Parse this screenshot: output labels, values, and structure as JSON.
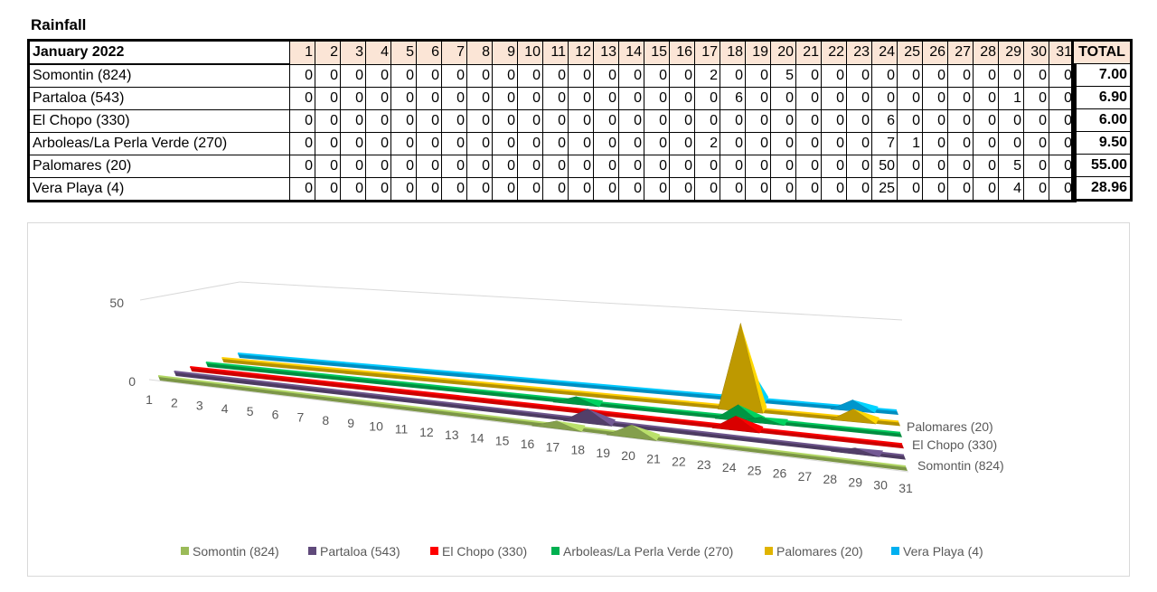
{
  "title": "Rainfall",
  "table": {
    "period_label": "January 2022",
    "days": [
      "1",
      "2",
      "3",
      "4",
      "5",
      "6",
      "7",
      "8",
      "9",
      "10",
      "11",
      "12",
      "13",
      "14",
      "15",
      "16",
      "17",
      "18",
      "19",
      "20",
      "21",
      "22",
      "23",
      "24",
      "25",
      "26",
      "27",
      "28",
      "29",
      "30",
      "31"
    ],
    "total_label": "TOTAL",
    "rows": [
      {
        "name": "Somontin (824)",
        "values": [
          0,
          0,
          0,
          0,
          0,
          0,
          0,
          0,
          0,
          0,
          0,
          0,
          0,
          0,
          0,
          0,
          2,
          0,
          0,
          5,
          0,
          0,
          0,
          0,
          0,
          0,
          0,
          0,
          0,
          0,
          0
        ],
        "total": "7.00"
      },
      {
        "name": "Partaloa (543)",
        "values": [
          0,
          0,
          0,
          0,
          0,
          0,
          0,
          0,
          0,
          0,
          0,
          0,
          0,
          0,
          0,
          0,
          0,
          6,
          0,
          0,
          0,
          0,
          0,
          0,
          0,
          0,
          0,
          0,
          1,
          0,
          0
        ],
        "total": "6.90"
      },
      {
        "name": "El Chopo (330)",
        "values": [
          0,
          0,
          0,
          0,
          0,
          0,
          0,
          0,
          0,
          0,
          0,
          0,
          0,
          0,
          0,
          0,
          0,
          0,
          0,
          0,
          0,
          0,
          0,
          6,
          0,
          0,
          0,
          0,
          0,
          0,
          0
        ],
        "total": "6.00"
      },
      {
        "name": "Arboleas/La Perla Verde (270)",
        "values": [
          0,
          0,
          0,
          0,
          0,
          0,
          0,
          0,
          0,
          0,
          0,
          0,
          0,
          0,
          0,
          0,
          2,
          0,
          0,
          0,
          0,
          0,
          0,
          7,
          1,
          0,
          0,
          0,
          0,
          0,
          0
        ],
        "total": "9.50"
      },
      {
        "name": "Palomares (20)",
        "values": [
          0,
          0,
          0,
          0,
          0,
          0,
          0,
          0,
          0,
          0,
          0,
          0,
          0,
          0,
          0,
          0,
          0,
          0,
          0,
          0,
          0,
          0,
          0,
          50,
          0,
          0,
          0,
          0,
          5,
          0,
          0
        ],
        "total": "55.00"
      },
      {
        "name": "Vera Playa (4)",
        "values": [
          0,
          0,
          0,
          0,
          0,
          0,
          0,
          0,
          0,
          0,
          0,
          0,
          0,
          0,
          0,
          0,
          0,
          0,
          0,
          0,
          0,
          0,
          0,
          25,
          0,
          0,
          0,
          0,
          4,
          0,
          0
        ],
        "total": "28.96"
      }
    ]
  },
  "chart_data": {
    "type": "area",
    "x": [
      "1",
      "2",
      "3",
      "4",
      "5",
      "6",
      "7",
      "8",
      "9",
      "10",
      "11",
      "12",
      "13",
      "14",
      "15",
      "16",
      "17",
      "18",
      "19",
      "20",
      "21",
      "22",
      "23",
      "24",
      "25",
      "26",
      "27",
      "28",
      "29",
      "30",
      "31"
    ],
    "y_ticks": [
      "0",
      "50"
    ],
    "ylim": [
      0,
      50
    ],
    "depth_labels": [
      "Palomares (20)",
      "El Chopo (330)",
      "Somontin (824)"
    ],
    "legend_position": "bottom",
    "series": [
      {
        "name": "Somontin (824)",
        "color": "#9bbb59",
        "values": [
          0,
          0,
          0,
          0,
          0,
          0,
          0,
          0,
          0,
          0,
          0,
          0,
          0,
          0,
          0,
          0,
          2,
          0,
          0,
          5,
          0,
          0,
          0,
          0,
          0,
          0,
          0,
          0,
          0,
          0,
          0
        ]
      },
      {
        "name": "Partaloa (543)",
        "color": "#604a7b",
        "values": [
          0,
          0,
          0,
          0,
          0,
          0,
          0,
          0,
          0,
          0,
          0,
          0,
          0,
          0,
          0,
          0,
          0,
          6,
          0,
          0,
          0,
          0,
          0,
          0,
          0,
          0,
          0,
          0,
          1,
          0,
          0
        ]
      },
      {
        "name": "El Chopo (330)",
        "color": "#ff0000",
        "values": [
          0,
          0,
          0,
          0,
          0,
          0,
          0,
          0,
          0,
          0,
          0,
          0,
          0,
          0,
          0,
          0,
          0,
          0,
          0,
          0,
          0,
          0,
          0,
          6,
          0,
          0,
          0,
          0,
          0,
          0,
          0
        ]
      },
      {
        "name": "Arboleas/La Perla Verde (270)",
        "color": "#00b050",
        "values": [
          0,
          0,
          0,
          0,
          0,
          0,
          0,
          0,
          0,
          0,
          0,
          0,
          0,
          0,
          0,
          0,
          2,
          0,
          0,
          0,
          0,
          0,
          0,
          7,
          1,
          0,
          0,
          0,
          0,
          0,
          0
        ]
      },
      {
        "name": "Palomares (20)",
        "color": "#e0b400",
        "values": [
          0,
          0,
          0,
          0,
          0,
          0,
          0,
          0,
          0,
          0,
          0,
          0,
          0,
          0,
          0,
          0,
          0,
          0,
          0,
          0,
          0,
          0,
          0,
          50,
          0,
          0,
          0,
          0,
          5,
          0,
          0
        ]
      },
      {
        "name": "Vera Playa (4)",
        "color": "#00b0f0",
        "values": [
          0,
          0,
          0,
          0,
          0,
          0,
          0,
          0,
          0,
          0,
          0,
          0,
          0,
          0,
          0,
          0,
          0,
          0,
          0,
          0,
          0,
          0,
          0,
          25,
          0,
          0,
          0,
          0,
          4,
          0,
          0
        ]
      }
    ]
  }
}
